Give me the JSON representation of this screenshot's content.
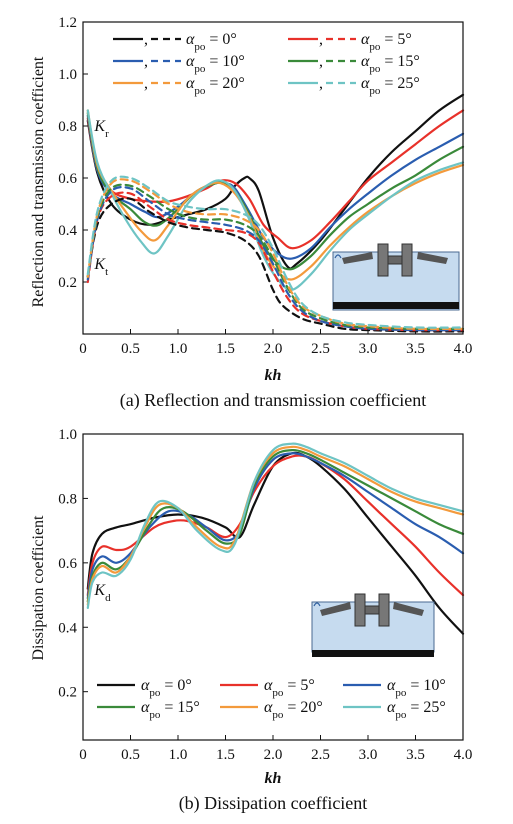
{
  "chart_data": [
    {
      "type": "line",
      "caption": "(a) Reflection and transmission coefficient",
      "xlabel": "kh",
      "ylabel": "Reflection and transmission coefficient",
      "xlim": [
        0,
        4.0
      ],
      "ylim": [
        0.0,
        1.2
      ],
      "xticks": [
        "0",
        "0.5",
        "1.0",
        "1.5",
        "2.0",
        "2.5",
        "3.0",
        "3.5",
        "4.0"
      ],
      "yticks": [
        "0.2",
        "0.4",
        "0.6",
        "0.8",
        "1.0",
        "1.2"
      ],
      "annotations": [
        {
          "label": "K",
          "sub": "r",
          "x": 0.12,
          "y": 0.78
        },
        {
          "label": "K",
          "sub": "t",
          "x": 0.12,
          "y": 0.25
        }
      ],
      "legend_placement": "top",
      "legend": [
        {
          "prefix": "α",
          "sub": "po",
          "text": " = 0°",
          "color": "#111111"
        },
        {
          "prefix": "α",
          "sub": "po",
          "text": " = 5°",
          "color": "#e8312a"
        },
        {
          "prefix": "α",
          "sub": "po",
          "text": " = 10°",
          "color": "#2a5db0"
        },
        {
          "prefix": "α",
          "sub": "po",
          "text": " = 15°",
          "color": "#3a8a3a"
        },
        {
          "prefix": "α",
          "sub": "po",
          "text": " = 20°",
          "color": "#f39a3c"
        },
        {
          "prefix": "α",
          "sub": "po",
          "text": " = 25°",
          "color": "#6ec4c4"
        }
      ],
      "series": [
        {
          "group": "Kr",
          "color": "#111111",
          "dash": false,
          "x": [
            0.05,
            0.15,
            0.3,
            0.5,
            0.7,
            0.9,
            1.1,
            1.3,
            1.5,
            1.6,
            1.7,
            1.75,
            1.85,
            2.0,
            2.15,
            2.25,
            2.5,
            2.75,
            3.0,
            3.25,
            3.5,
            3.75,
            4.0
          ],
          "y": [
            0.82,
            0.62,
            0.5,
            0.44,
            0.42,
            0.44,
            0.46,
            0.48,
            0.52,
            0.57,
            0.6,
            0.6,
            0.55,
            0.37,
            0.26,
            0.27,
            0.36,
            0.48,
            0.6,
            0.7,
            0.78,
            0.86,
            0.92
          ]
        },
        {
          "group": "Kr",
          "color": "#e8312a",
          "dash": false,
          "x": [
            0.05,
            0.15,
            0.3,
            0.5,
            0.7,
            0.9,
            1.1,
            1.3,
            1.45,
            1.6,
            1.75,
            1.9,
            2.05,
            2.2,
            2.4,
            2.6,
            2.8,
            3.0,
            3.25,
            3.5,
            3.75,
            4.0
          ],
          "y": [
            0.83,
            0.63,
            0.55,
            0.52,
            0.51,
            0.51,
            0.53,
            0.56,
            0.59,
            0.58,
            0.52,
            0.42,
            0.37,
            0.33,
            0.36,
            0.43,
            0.51,
            0.59,
            0.66,
            0.73,
            0.8,
            0.86
          ]
        },
        {
          "group": "Kr",
          "color": "#2a5db0",
          "dash": false,
          "x": [
            0.05,
            0.15,
            0.3,
            0.5,
            0.65,
            0.8,
            1.0,
            1.2,
            1.4,
            1.5,
            1.6,
            1.75,
            1.9,
            2.05,
            2.2,
            2.4,
            2.6,
            2.8,
            3.0,
            3.25,
            3.5,
            3.75,
            4.0
          ],
          "y": [
            0.84,
            0.63,
            0.54,
            0.5,
            0.47,
            0.45,
            0.49,
            0.55,
            0.58,
            0.58,
            0.56,
            0.47,
            0.37,
            0.31,
            0.29,
            0.33,
            0.41,
            0.48,
            0.54,
            0.61,
            0.67,
            0.72,
            0.77
          ]
        },
        {
          "group": "Kr",
          "color": "#3a8a3a",
          "dash": false,
          "x": [
            0.05,
            0.15,
            0.3,
            0.5,
            0.65,
            0.8,
            1.0,
            1.2,
            1.4,
            1.5,
            1.6,
            1.75,
            1.9,
            2.05,
            2.2,
            2.4,
            2.6,
            2.8,
            3.0,
            3.25,
            3.5,
            3.75,
            4.0
          ],
          "y": [
            0.85,
            0.64,
            0.54,
            0.48,
            0.43,
            0.42,
            0.48,
            0.55,
            0.58,
            0.58,
            0.55,
            0.46,
            0.34,
            0.27,
            0.25,
            0.3,
            0.38,
            0.45,
            0.5,
            0.56,
            0.61,
            0.67,
            0.72
          ]
        },
        {
          "group": "Kr",
          "color": "#f39a3c",
          "dash": false,
          "x": [
            0.05,
            0.15,
            0.3,
            0.45,
            0.6,
            0.75,
            0.9,
            1.1,
            1.3,
            1.45,
            1.6,
            1.75,
            1.9,
            2.05,
            2.2,
            2.4,
            2.6,
            2.8,
            3.0,
            3.25,
            3.5,
            3.75,
            4.0
          ],
          "y": [
            0.86,
            0.65,
            0.55,
            0.47,
            0.4,
            0.36,
            0.42,
            0.52,
            0.57,
            0.58,
            0.54,
            0.45,
            0.32,
            0.24,
            0.21,
            0.26,
            0.34,
            0.41,
            0.47,
            0.53,
            0.58,
            0.62,
            0.65
          ]
        },
        {
          "group": "Kr",
          "color": "#6ec4c4",
          "dash": false,
          "x": [
            0.05,
            0.15,
            0.3,
            0.45,
            0.6,
            0.75,
            0.9,
            1.1,
            1.3,
            1.45,
            1.6,
            1.75,
            1.9,
            2.05,
            2.2,
            2.4,
            2.6,
            2.8,
            3.0,
            3.25,
            3.5,
            3.75,
            4.0
          ],
          "y": [
            0.86,
            0.66,
            0.54,
            0.44,
            0.36,
            0.31,
            0.38,
            0.5,
            0.57,
            0.59,
            0.55,
            0.44,
            0.3,
            0.21,
            0.17,
            0.23,
            0.32,
            0.4,
            0.46,
            0.53,
            0.59,
            0.63,
            0.66
          ]
        },
        {
          "group": "Kt",
          "color": "#111111",
          "dash": true,
          "x": [
            0.05,
            0.15,
            0.3,
            0.5,
            0.7,
            0.9,
            1.1,
            1.3,
            1.5,
            1.7,
            1.85,
            2.0,
            2.1,
            2.3,
            2.5,
            2.75,
            3.0,
            3.5,
            4.0
          ],
          "y": [
            0.22,
            0.42,
            0.5,
            0.52,
            0.47,
            0.43,
            0.41,
            0.4,
            0.39,
            0.36,
            0.3,
            0.17,
            0.11,
            0.06,
            0.04,
            0.02,
            0.015,
            0.01,
            0.01
          ]
        },
        {
          "group": "Kt",
          "color": "#e8312a",
          "dash": true,
          "x": [
            0.05,
            0.15,
            0.3,
            0.5,
            0.7,
            0.9,
            1.1,
            1.3,
            1.5,
            1.7,
            1.85,
            2.0,
            2.15,
            2.3,
            2.5,
            2.75,
            3.0,
            3.5,
            4.0
          ],
          "y": [
            0.2,
            0.44,
            0.53,
            0.54,
            0.49,
            0.44,
            0.42,
            0.41,
            0.4,
            0.39,
            0.35,
            0.24,
            0.14,
            0.08,
            0.05,
            0.03,
            0.02,
            0.015,
            0.015
          ]
        },
        {
          "group": "Kt",
          "color": "#2a5db0",
          "dash": true,
          "x": [
            0.05,
            0.15,
            0.3,
            0.5,
            0.7,
            0.9,
            1.1,
            1.3,
            1.5,
            1.7,
            1.85,
            2.0,
            2.15,
            2.3,
            2.5,
            2.75,
            3.0,
            3.5,
            4.0
          ],
          "y": [
            0.21,
            0.44,
            0.55,
            0.56,
            0.51,
            0.46,
            0.44,
            0.43,
            0.42,
            0.4,
            0.36,
            0.27,
            0.16,
            0.09,
            0.05,
            0.03,
            0.02,
            0.015,
            0.015
          ]
        },
        {
          "group": "Kt",
          "color": "#3a8a3a",
          "dash": true,
          "x": [
            0.05,
            0.15,
            0.3,
            0.5,
            0.7,
            0.9,
            1.1,
            1.3,
            1.5,
            1.7,
            1.85,
            2.0,
            2.15,
            2.3,
            2.5,
            2.75,
            3.0,
            3.5,
            4.0
          ],
          "y": [
            0.22,
            0.45,
            0.56,
            0.57,
            0.53,
            0.48,
            0.45,
            0.44,
            0.44,
            0.42,
            0.38,
            0.29,
            0.18,
            0.1,
            0.06,
            0.035,
            0.025,
            0.02,
            0.02
          ]
        },
        {
          "group": "Kt",
          "color": "#f39a3c",
          "dash": true,
          "x": [
            0.05,
            0.15,
            0.3,
            0.5,
            0.7,
            0.9,
            1.1,
            1.3,
            1.5,
            1.7,
            1.85,
            2.0,
            2.15,
            2.3,
            2.5,
            2.75,
            3.0,
            3.5,
            4.0
          ],
          "y": [
            0.22,
            0.46,
            0.58,
            0.59,
            0.55,
            0.5,
            0.47,
            0.46,
            0.46,
            0.44,
            0.4,
            0.31,
            0.19,
            0.11,
            0.07,
            0.04,
            0.03,
            0.02,
            0.02
          ]
        },
        {
          "group": "Kt",
          "color": "#6ec4c4",
          "dash": true,
          "x": [
            0.05,
            0.15,
            0.3,
            0.5,
            0.7,
            0.9,
            1.1,
            1.3,
            1.5,
            1.7,
            1.85,
            2.0,
            2.15,
            2.3,
            2.5,
            2.75,
            3.0,
            3.5,
            4.0
          ],
          "y": [
            0.23,
            0.47,
            0.59,
            0.6,
            0.56,
            0.51,
            0.49,
            0.48,
            0.48,
            0.46,
            0.42,
            0.33,
            0.21,
            0.12,
            0.07,
            0.045,
            0.035,
            0.025,
            0.025
          ]
        }
      ]
    },
    {
      "type": "line",
      "caption": "(b) Dissipation coefficient",
      "xlabel": "kh",
      "ylabel": "Dissipation coefficient",
      "xlim": [
        0,
        4.0
      ],
      "ylim": [
        0.05,
        1.0
      ],
      "xticks": [
        "0",
        "0.5",
        "1.0",
        "1.5",
        "2.0",
        "2.5",
        "3.0",
        "3.5",
        "4.0"
      ],
      "yticks": [
        "0.2",
        "0.4",
        "0.6",
        "0.8",
        "1.0"
      ],
      "annotations": [
        {
          "label": "K",
          "sub": "d",
          "x": 0.12,
          "y": 0.5
        }
      ],
      "legend_placement": "bottom",
      "legend": [
        {
          "prefix": "α",
          "sub": "po",
          "text": " = 0°",
          "color": "#111111"
        },
        {
          "prefix": "α",
          "sub": "po",
          "text": " = 5°",
          "color": "#e8312a"
        },
        {
          "prefix": "α",
          "sub": "po",
          "text": " = 10°",
          "color": "#2a5db0"
        },
        {
          "prefix": "α",
          "sub": "po",
          "text": " = 15°",
          "color": "#3a8a3a"
        },
        {
          "prefix": "α",
          "sub": "po",
          "text": " = 20°",
          "color": "#f39a3c"
        },
        {
          "prefix": "α",
          "sub": "po",
          "text": " = 25°",
          "color": "#6ec4c4"
        }
      ],
      "series": [
        {
          "group": "Kd",
          "color": "#111111",
          "dash": false,
          "x": [
            0.05,
            0.1,
            0.2,
            0.35,
            0.5,
            0.75,
            1.0,
            1.25,
            1.5,
            1.65,
            1.8,
            2.0,
            2.2,
            2.35,
            2.5,
            2.75,
            3.0,
            3.25,
            3.5,
            3.75,
            4.0
          ],
          "y": [
            0.52,
            0.63,
            0.69,
            0.71,
            0.72,
            0.74,
            0.75,
            0.74,
            0.71,
            0.68,
            0.78,
            0.9,
            0.94,
            0.93,
            0.9,
            0.83,
            0.74,
            0.65,
            0.56,
            0.46,
            0.38
          ]
        },
        {
          "group": "Kd",
          "color": "#e8312a",
          "dash": false,
          "x": [
            0.05,
            0.1,
            0.2,
            0.35,
            0.5,
            0.75,
            0.95,
            1.1,
            1.3,
            1.5,
            1.65,
            1.8,
            2.0,
            2.2,
            2.35,
            2.5,
            2.75,
            3.0,
            3.25,
            3.5,
            3.75,
            4.0
          ],
          "y": [
            0.5,
            0.6,
            0.65,
            0.64,
            0.65,
            0.71,
            0.73,
            0.73,
            0.71,
            0.68,
            0.72,
            0.82,
            0.9,
            0.93,
            0.93,
            0.91,
            0.86,
            0.79,
            0.72,
            0.65,
            0.57,
            0.5
          ]
        },
        {
          "group": "Kd",
          "color": "#2a5db0",
          "dash": false,
          "x": [
            0.05,
            0.1,
            0.2,
            0.35,
            0.5,
            0.7,
            0.9,
            1.1,
            1.3,
            1.5,
            1.65,
            1.8,
            2.0,
            2.2,
            2.35,
            2.5,
            2.75,
            3.0,
            3.25,
            3.5,
            3.75,
            4.0
          ],
          "y": [
            0.49,
            0.58,
            0.62,
            0.6,
            0.63,
            0.71,
            0.76,
            0.75,
            0.71,
            0.67,
            0.7,
            0.83,
            0.92,
            0.94,
            0.93,
            0.91,
            0.87,
            0.82,
            0.77,
            0.72,
            0.68,
            0.63
          ]
        },
        {
          "group": "Kd",
          "color": "#3a8a3a",
          "dash": false,
          "x": [
            0.05,
            0.1,
            0.2,
            0.35,
            0.5,
            0.7,
            0.85,
            1.05,
            1.3,
            1.5,
            1.65,
            1.8,
            2.0,
            2.2,
            2.35,
            2.5,
            2.75,
            3.0,
            3.25,
            3.5,
            3.75,
            4.0
          ],
          "y": [
            0.48,
            0.56,
            0.6,
            0.58,
            0.62,
            0.72,
            0.77,
            0.76,
            0.7,
            0.66,
            0.69,
            0.84,
            0.93,
            0.95,
            0.94,
            0.92,
            0.88,
            0.84,
            0.8,
            0.76,
            0.72,
            0.69
          ]
        },
        {
          "group": "Kd",
          "color": "#f39a3c",
          "dash": false,
          "x": [
            0.05,
            0.1,
            0.2,
            0.35,
            0.5,
            0.65,
            0.8,
            1.0,
            1.2,
            1.45,
            1.6,
            1.8,
            2.0,
            2.2,
            2.35,
            2.5,
            2.75,
            3.0,
            3.25,
            3.5,
            3.75,
            4.0
          ],
          "y": [
            0.47,
            0.55,
            0.59,
            0.57,
            0.62,
            0.71,
            0.78,
            0.77,
            0.71,
            0.65,
            0.67,
            0.85,
            0.94,
            0.96,
            0.95,
            0.93,
            0.9,
            0.86,
            0.82,
            0.79,
            0.77,
            0.75
          ]
        },
        {
          "group": "Kd",
          "color": "#6ec4c4",
          "dash": false,
          "x": [
            0.05,
            0.1,
            0.2,
            0.35,
            0.5,
            0.65,
            0.8,
            1.0,
            1.2,
            1.45,
            1.6,
            1.8,
            2.0,
            2.2,
            2.35,
            2.5,
            2.75,
            3.0,
            3.25,
            3.5,
            3.75,
            4.0
          ],
          "y": [
            0.46,
            0.54,
            0.57,
            0.56,
            0.61,
            0.72,
            0.79,
            0.77,
            0.7,
            0.64,
            0.66,
            0.85,
            0.95,
            0.97,
            0.96,
            0.94,
            0.91,
            0.87,
            0.83,
            0.8,
            0.78,
            0.76
          ]
        }
      ]
    }
  ]
}
